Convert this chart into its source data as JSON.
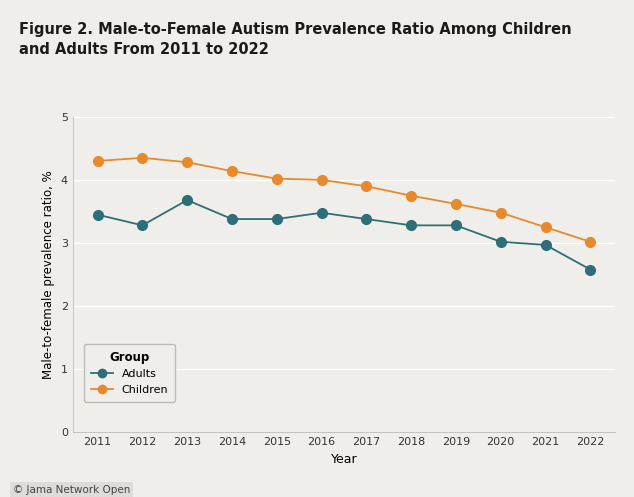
{
  "years": [
    2011,
    2012,
    2013,
    2014,
    2015,
    2016,
    2017,
    2018,
    2019,
    2020,
    2021,
    2022
  ],
  "adults": [
    3.45,
    3.28,
    3.68,
    3.38,
    3.38,
    3.48,
    3.38,
    3.28,
    3.28,
    3.02,
    2.97,
    2.58
  ],
  "children": [
    4.3,
    4.35,
    4.28,
    4.14,
    4.02,
    4.0,
    3.9,
    3.75,
    3.62,
    3.48,
    3.25,
    3.02
  ],
  "adults_color": "#2e6e78",
  "children_color": "#e8892b",
  "background_color": "#f0eeea",
  "title": "Figure 2. Male-to-Female Autism Prevalence Ratio Among Children\nand Adults From 2011 to 2022",
  "ylabel": "Male-to-female prevalence ratio, %",
  "xlabel": "Year",
  "ylim": [
    0,
    5
  ],
  "yticks": [
    0,
    1,
    2,
    3,
    4,
    5
  ],
  "legend_title": "Group",
  "legend_adults": "Adults",
  "legend_children": "Children",
  "top_bar_color": "#d4006a",
  "footer_text": "© Jama Network Open",
  "marker_size": 7,
  "line_width": 1.3
}
